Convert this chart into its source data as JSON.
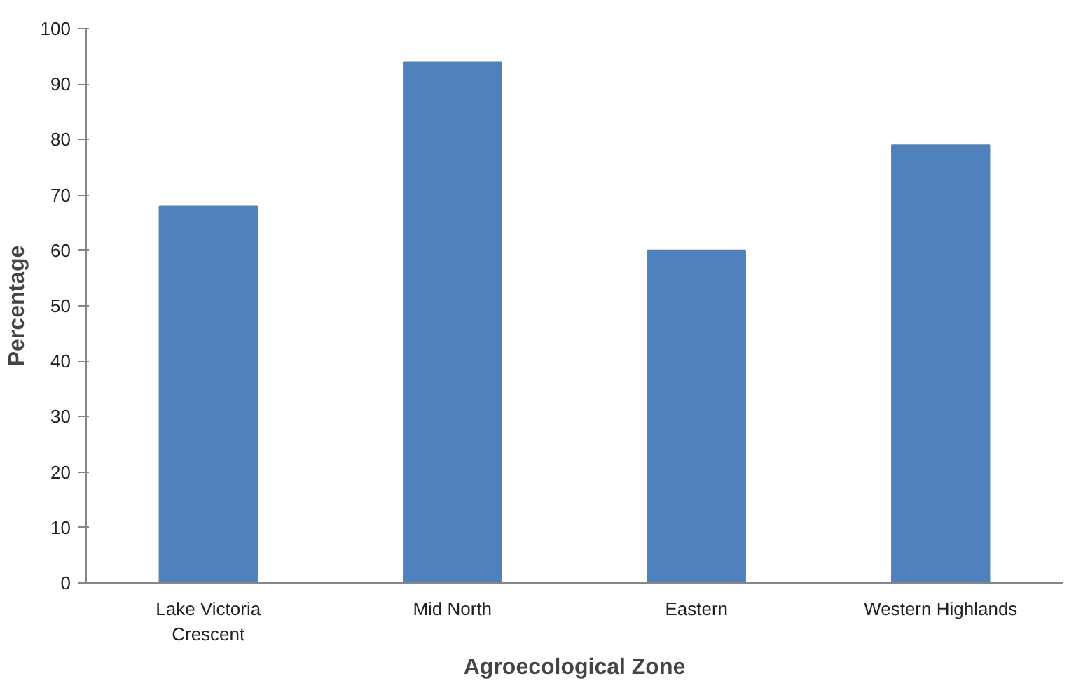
{
  "chart_data": {
    "type": "bar",
    "xlabel": "Agroecological Zone",
    "ylabel": "Percentage",
    "categories": [
      "Lake Victoria Crescent",
      "Mid North",
      "Eastern",
      "Western Highlands"
    ],
    "values": [
      68,
      94,
      60,
      79
    ],
    "color": "#4f81bd",
    "ylim": [
      0,
      100
    ],
    "yticks": [
      0,
      10,
      20,
      30,
      40,
      50,
      60,
      70,
      80,
      90,
      100
    ],
    "grid": false
  }
}
